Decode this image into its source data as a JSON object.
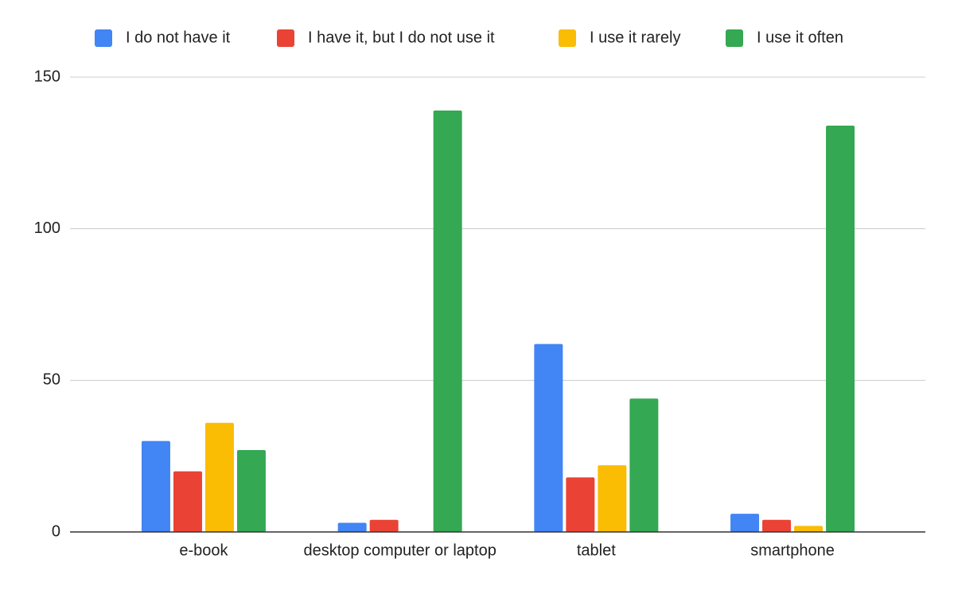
{
  "chart_data": {
    "type": "bar",
    "categories": [
      "e-book",
      "desktop computer or laptop",
      "tablet",
      "smartphone"
    ],
    "series": [
      {
        "name": "I do not have it",
        "color": "#4285f4",
        "values": [
          30,
          3,
          62,
          6
        ]
      },
      {
        "name": "I have it, but I do not use it",
        "color": "#ea4335",
        "values": [
          20,
          4,
          18,
          4
        ]
      },
      {
        "name": "I use it rarely",
        "color": "#fbbc04",
        "values": [
          36,
          0,
          22,
          2
        ]
      },
      {
        "name": "I use it often",
        "color": "#34a853",
        "values": [
          27,
          139,
          44,
          134
        ]
      }
    ],
    "ylim": [
      0,
      150
    ],
    "yticks": [
      0,
      50,
      100,
      150
    ],
    "grid": true,
    "legend": "top"
  }
}
